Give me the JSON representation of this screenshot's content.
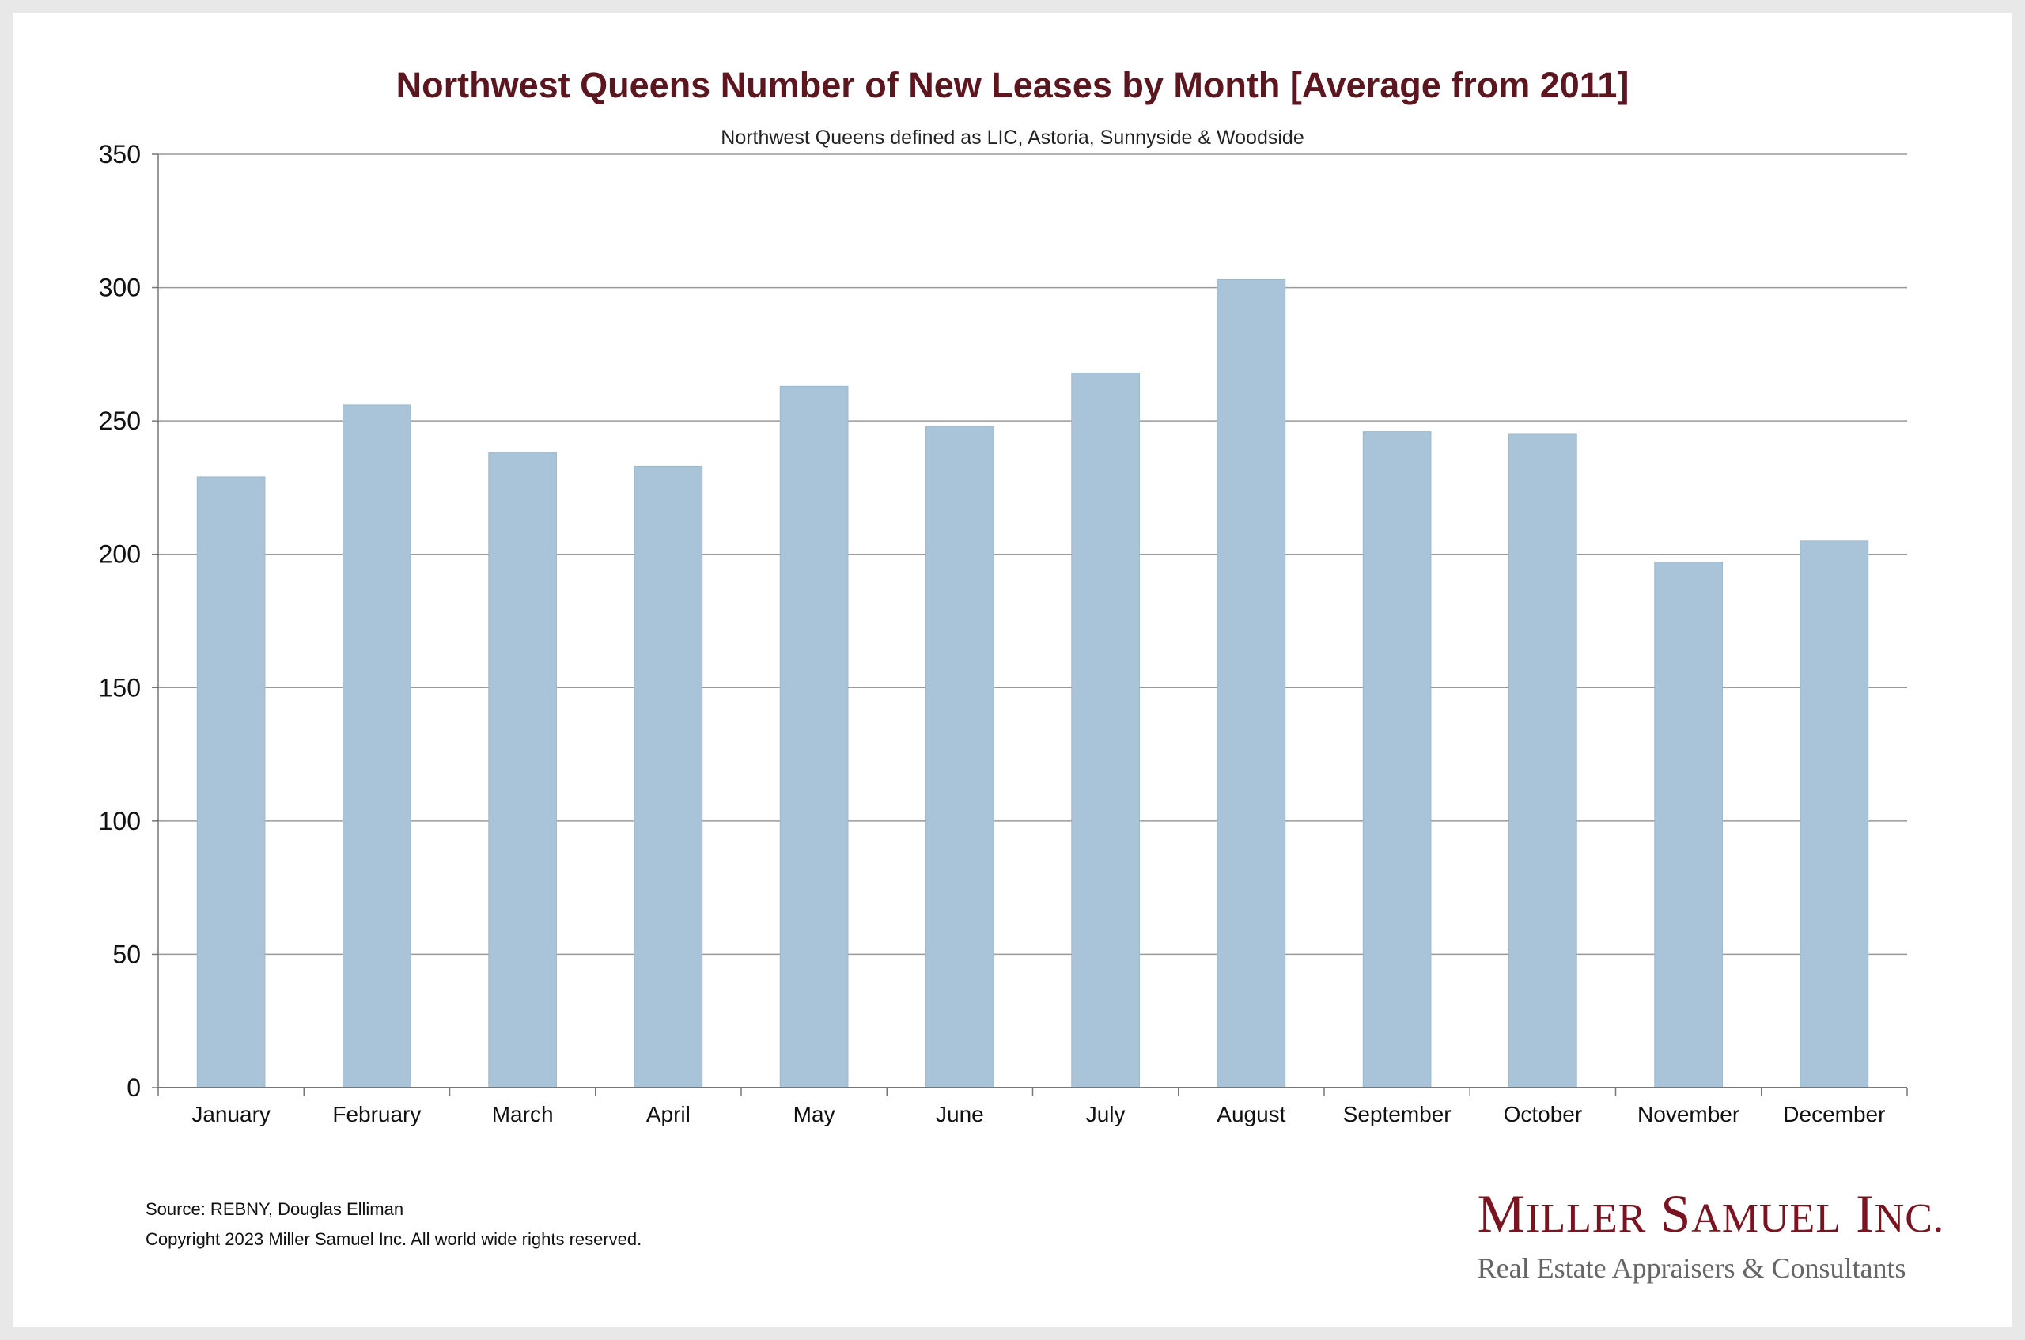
{
  "colors": {
    "title": "#5c1620",
    "bar": "#a9c4d8",
    "grid": "#9a9a9a",
    "brand": "#7a1420"
  },
  "chart_data": {
    "type": "bar",
    "title": "Northwest Queens Number of New Leases by Month [Average from 2011]",
    "subtitle": "Northwest Queens defined as LIC, Astoria, Sunnyside & Woodside",
    "categories": [
      "January",
      "February",
      "March",
      "April",
      "May",
      "June",
      "July",
      "August",
      "September",
      "October",
      "November",
      "December"
    ],
    "values": [
      229,
      256,
      238,
      233,
      263,
      248,
      268,
      303,
      246,
      245,
      197,
      205
    ],
    "ylim": [
      0,
      350
    ],
    "yticks": [
      0,
      50,
      100,
      150,
      200,
      250,
      300,
      350
    ],
    "grid": true,
    "legend": "none"
  },
  "footer": {
    "source": "Source: REBNY, Douglas Elliman",
    "copyright": "Copyright 2023 Miller Samuel Inc.  All world wide rights reserved."
  },
  "brand": {
    "name_parts": [
      {
        "cap": "M",
        "rest": "ILLER"
      },
      {
        "cap": "S",
        "rest": "AMUEL"
      },
      {
        "cap": "I",
        "rest": "NC."
      }
    ],
    "name": "Miller Samuel Inc.",
    "tagline": "Real Estate Appraisers & Consultants"
  }
}
